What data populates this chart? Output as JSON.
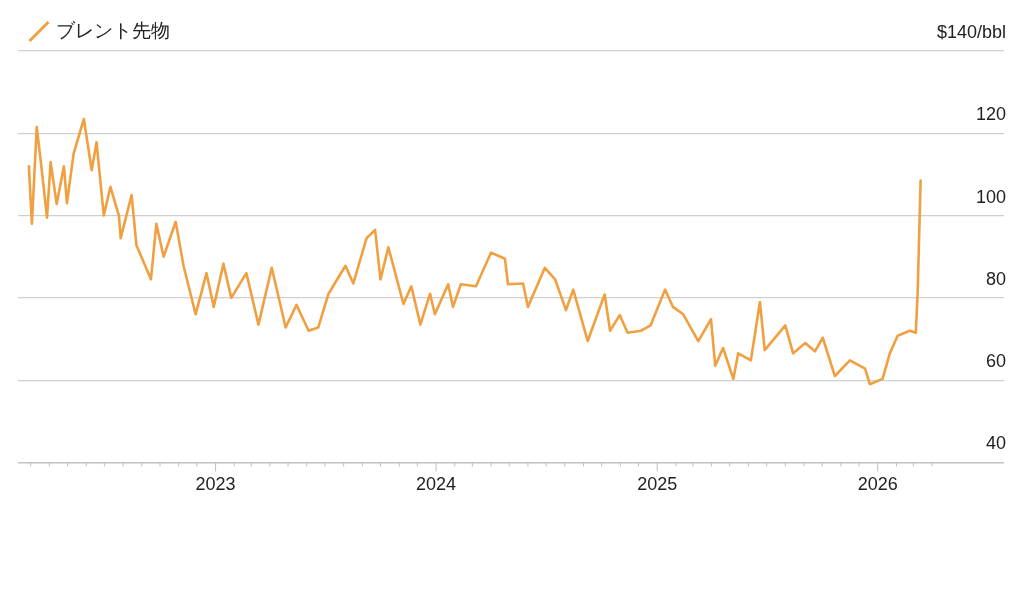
{
  "chart_data": {
    "type": "line",
    "x": [
      "2022-02-26",
      "2022-03-03",
      "2022-03-11",
      "2022-03-18",
      "2022-03-28",
      "2022-04-03",
      "2022-04-13",
      "2022-04-25",
      "2022-04-30",
      "2022-05-11",
      "2022-05-28",
      "2022-06-10",
      "2022-06-18",
      "2022-06-30",
      "2022-07-11",
      "2022-07-25",
      "2022-07-28",
      "2022-08-15",
      "2022-08-23",
      "2022-09-16",
      "2022-09-25",
      "2022-10-07",
      "2022-10-27",
      "2022-11-09",
      "2022-11-29",
      "2022-12-17",
      "2022-12-29",
      "2023-01-14",
      "2023-01-27",
      "2023-02-21",
      "2023-03-13",
      "2023-04-04",
      "2023-04-27",
      "2023-05-15",
      "2023-06-04",
      "2023-06-20",
      "2023-07-07",
      "2023-08-04",
      "2023-08-17",
      "2023-09-08",
      "2023-09-22",
      "2023-10-01",
      "2023-10-14",
      "2023-11-08",
      "2023-11-21",
      "2023-12-06",
      "2023-12-22",
      "2023-12-30",
      "2024-01-21",
      "2024-01-29",
      "2024-02-11",
      "2024-03-07",
      "2024-04-01",
      "2024-04-24",
      "2024-04-29",
      "2024-05-24",
      "2024-06-01",
      "2024-06-29",
      "2024-07-16",
      "2024-08-03",
      "2024-08-15",
      "2024-09-08",
      "2024-09-21",
      "2024-10-06",
      "2024-10-15",
      "2024-10-31",
      "2024-11-13",
      "2024-12-05",
      "2024-12-21",
      "2025-01-14",
      "2025-01-27",
      "2025-02-13",
      "2025-03-10",
      "2025-03-31",
      "2025-04-07",
      "2025-04-20",
      "2025-05-07",
      "2025-05-15",
      "2025-06-05",
      "2025-06-20",
      "2025-06-28",
      "2025-08-01",
      "2025-08-14",
      "2025-09-03",
      "2025-09-19",
      "2025-10-02",
      "2025-10-22",
      "2025-11-16",
      "2025-12-11",
      "2025-12-19",
      "2026-01-09",
      "2026-01-21",
      "2026-02-03",
      "2026-02-23",
      "2026-03-05",
      "2026-03-08",
      "2026-03-13"
    ],
    "series": [
      {
        "name": "ブレント先物",
        "color": "#f0a040",
        "values": [
          112,
          98,
          121.5,
          112.8,
          99.5,
          113,
          102.8,
          112,
          103,
          115,
          123.5,
          111,
          117.8,
          100,
          107,
          100,
          94.5,
          105,
          92.8,
          84.5,
          98,
          90,
          98.5,
          87.8,
          76,
          86,
          77.8,
          88.3,
          80,
          86,
          73.5,
          87.3,
          72.8,
          78.3,
          72,
          72.8,
          81,
          87.8,
          83.5,
          94.5,
          96.5,
          84.5,
          92.3,
          78.5,
          82.8,
          73.5,
          81,
          76,
          83.3,
          77.8,
          83.3,
          82.8,
          91,
          89.5,
          83.3,
          83.5,
          77.8,
          87.3,
          84.5,
          77,
          82,
          69.5,
          74.8,
          80.8,
          72,
          75.8,
          71.5,
          72,
          73.3,
          82,
          77.8,
          76,
          69.5,
          74.8,
          63.5,
          67.8,
          60.3,
          66.5,
          64.8,
          79,
          67.3,
          73.3,
          66.5,
          69,
          67,
          70.3,
          61,
          64.8,
          62.8,
          59,
          60.3,
          66.5,
          70.8,
          72,
          71.5,
          81,
          108.5
        ]
      }
    ],
    "xlim": [
      "2022-02-08",
      "2026-07-29"
    ],
    "xticks": [
      {
        "value": "2022-03-01",
        "label": null
      },
      {
        "value": "2022-04-01",
        "label": null
      },
      {
        "value": "2022-05-01",
        "label": null
      },
      {
        "value": "2022-06-01",
        "label": null
      },
      {
        "value": "2022-07-01",
        "label": null
      },
      {
        "value": "2022-08-01",
        "label": null
      },
      {
        "value": "2022-09-01",
        "label": null
      },
      {
        "value": "2022-10-01",
        "label": null
      },
      {
        "value": "2022-11-01",
        "label": null
      },
      {
        "value": "2022-12-01",
        "label": null
      },
      {
        "value": "2023-01-01",
        "label": "2023"
      },
      {
        "value": "2023-02-01",
        "label": null
      },
      {
        "value": "2023-03-01",
        "label": null
      },
      {
        "value": "2023-04-01",
        "label": null
      },
      {
        "value": "2023-05-01",
        "label": null
      },
      {
        "value": "2023-06-01",
        "label": null
      },
      {
        "value": "2023-07-01",
        "label": null
      },
      {
        "value": "2023-08-01",
        "label": null
      },
      {
        "value": "2023-09-01",
        "label": null
      },
      {
        "value": "2023-10-01",
        "label": null
      },
      {
        "value": "2023-11-01",
        "label": null
      },
      {
        "value": "2023-12-01",
        "label": null
      },
      {
        "value": "2024-01-01",
        "label": "2024"
      },
      {
        "value": "2024-02-01",
        "label": null
      },
      {
        "value": "2024-03-01",
        "label": null
      },
      {
        "value": "2024-04-01",
        "label": null
      },
      {
        "value": "2024-05-01",
        "label": null
      },
      {
        "value": "2024-06-01",
        "label": null
      },
      {
        "value": "2024-07-01",
        "label": null
      },
      {
        "value": "2024-08-01",
        "label": null
      },
      {
        "value": "2024-09-01",
        "label": null
      },
      {
        "value": "2024-10-01",
        "label": null
      },
      {
        "value": "2024-11-01",
        "label": null
      },
      {
        "value": "2024-12-01",
        "label": null
      },
      {
        "value": "2025-01-01",
        "label": "2025"
      },
      {
        "value": "2025-02-01",
        "label": null
      },
      {
        "value": "2025-03-01",
        "label": null
      },
      {
        "value": "2025-04-01",
        "label": null
      },
      {
        "value": "2025-05-01",
        "label": null
      },
      {
        "value": "2025-06-01",
        "label": null
      },
      {
        "value": "2025-07-01",
        "label": null
      },
      {
        "value": "2025-08-01",
        "label": null
      },
      {
        "value": "2025-09-01",
        "label": null
      },
      {
        "value": "2025-10-01",
        "label": null
      },
      {
        "value": "2025-11-01",
        "label": null
      },
      {
        "value": "2025-12-01",
        "label": null
      },
      {
        "value": "2026-01-01",
        "label": "2026"
      },
      {
        "value": "2026-02-01",
        "label": null
      },
      {
        "value": "2026-03-01",
        "label": null
      },
      {
        "value": "2026-04-01",
        "label": null
      }
    ],
    "ylim": [
      40,
      140
    ],
    "yticks": [
      40,
      60,
      80,
      100,
      120,
      {
        "value": 140,
        "label": "$140/bbl"
      }
    ],
    "grid": "y",
    "legend": "top left",
    "marker": "none",
    "line_style": "solid"
  }
}
